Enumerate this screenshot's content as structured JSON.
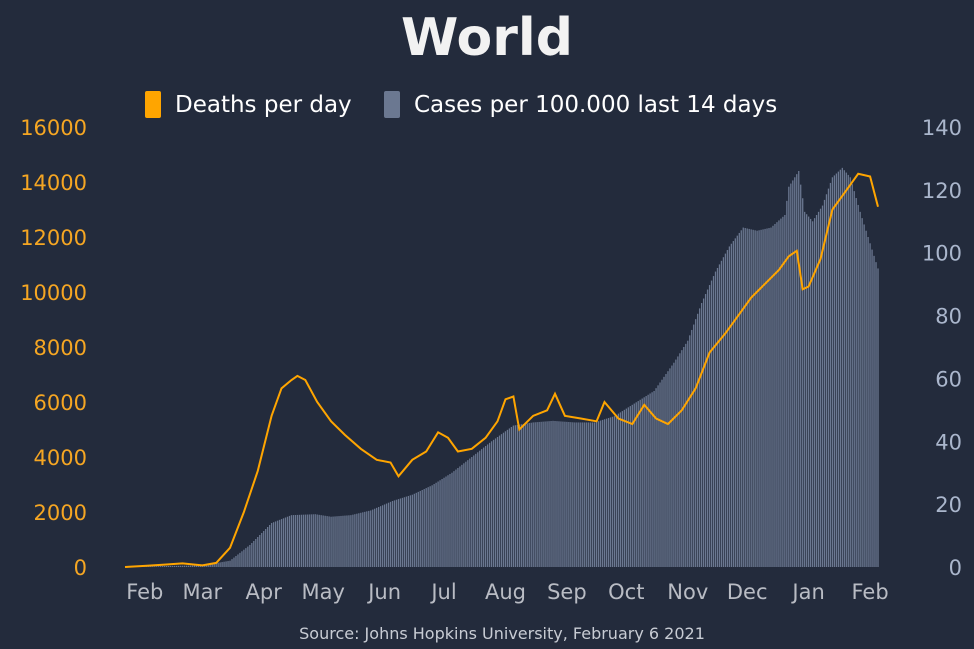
{
  "colors": {
    "background": "#232b3c",
    "deaths": "#ffa500",
    "cases": "#6b7891",
    "left_axis": "#f5a623",
    "right_axis": "#aab6cc",
    "x_axis": "#b9bcc4"
  },
  "chart_data": {
    "type": "bar",
    "title": "World",
    "source": "Source: Johns Hopkins University, February 6 2021",
    "legend": {
      "placement": "top-center",
      "deaths_label": "Deaths per day",
      "cases_label": "Cases per 100.000 last 14 days"
    },
    "x_ticks": [
      "Feb",
      "Mar",
      "Apr",
      "May",
      "Jun",
      "Jul",
      "Aug",
      "Sep",
      "Oct",
      "Nov",
      "Dec",
      "Jan",
      "Feb"
    ],
    "x_tick_dates": [
      "2020-02-01",
      "2020-03-01",
      "2020-04-01",
      "2020-05-01",
      "2020-06-01",
      "2020-07-01",
      "2020-08-01",
      "2020-09-01",
      "2020-10-01",
      "2020-11-01",
      "2020-12-01",
      "2021-01-01",
      "2021-02-01"
    ],
    "x_range": [
      "2020-01-22",
      "2021-02-05"
    ],
    "y_left": {
      "label": "",
      "range": [
        0,
        16000
      ],
      "ticks": [
        0,
        2000,
        4000,
        6000,
        8000,
        10000,
        12000,
        14000,
        16000
      ]
    },
    "y_right": {
      "label": "",
      "range": [
        0,
        140
      ],
      "ticks": [
        0,
        20,
        40,
        60,
        80,
        100,
        120,
        140
      ]
    },
    "grid": false,
    "series": [
      {
        "name": "Deaths per day",
        "kind": "line",
        "axis": "left",
        "points": [
          [
            "2020-01-22",
            0
          ],
          [
            "2020-02-01",
            40
          ],
          [
            "2020-02-10",
            80
          ],
          [
            "2020-02-20",
            130
          ],
          [
            "2020-03-01",
            60
          ],
          [
            "2020-03-08",
            150
          ],
          [
            "2020-03-15",
            700
          ],
          [
            "2020-03-22",
            2000
          ],
          [
            "2020-03-29",
            3500
          ],
          [
            "2020-04-05",
            5500
          ],
          [
            "2020-04-10",
            6500
          ],
          [
            "2020-04-15",
            6800
          ],
          [
            "2020-04-18",
            6950
          ],
          [
            "2020-04-22",
            6800
          ],
          [
            "2020-04-28",
            6000
          ],
          [
            "2020-05-05",
            5300
          ],
          [
            "2020-05-12",
            4800
          ],
          [
            "2020-05-20",
            4300
          ],
          [
            "2020-05-28",
            3900
          ],
          [
            "2020-06-04",
            3800
          ],
          [
            "2020-06-08",
            3300
          ],
          [
            "2020-06-15",
            3900
          ],
          [
            "2020-06-22",
            4200
          ],
          [
            "2020-06-28",
            4900
          ],
          [
            "2020-07-03",
            4700
          ],
          [
            "2020-07-08",
            4200
          ],
          [
            "2020-07-15",
            4300
          ],
          [
            "2020-07-22",
            4700
          ],
          [
            "2020-07-28",
            5300
          ],
          [
            "2020-08-01",
            6100
          ],
          [
            "2020-08-05",
            6200
          ],
          [
            "2020-08-08",
            5000
          ],
          [
            "2020-08-15",
            5500
          ],
          [
            "2020-08-22",
            5700
          ],
          [
            "2020-08-26",
            6300
          ],
          [
            "2020-08-31",
            5500
          ],
          [
            "2020-09-08",
            5400
          ],
          [
            "2020-09-16",
            5300
          ],
          [
            "2020-09-20",
            6000
          ],
          [
            "2020-09-27",
            5400
          ],
          [
            "2020-10-04",
            5200
          ],
          [
            "2020-10-10",
            5900
          ],
          [
            "2020-10-16",
            5400
          ],
          [
            "2020-10-22",
            5200
          ],
          [
            "2020-10-29",
            5700
          ],
          [
            "2020-11-05",
            6500
          ],
          [
            "2020-11-12",
            7800
          ],
          [
            "2020-11-20",
            8500
          ],
          [
            "2020-11-28",
            9300
          ],
          [
            "2020-12-03",
            9800
          ],
          [
            "2020-12-10",
            10300
          ],
          [
            "2020-12-17",
            10800
          ],
          [
            "2020-12-22",
            11300
          ],
          [
            "2020-12-26",
            11500
          ],
          [
            "2020-12-29",
            10100
          ],
          [
            "2021-01-01",
            10200
          ],
          [
            "2021-01-07",
            11200
          ],
          [
            "2021-01-13",
            13000
          ],
          [
            "2021-01-20",
            13700
          ],
          [
            "2021-01-26",
            14300
          ],
          [
            "2021-02-01",
            14200
          ],
          [
            "2021-02-05",
            13100
          ]
        ]
      },
      {
        "name": "Cases per 100.000 last 14 days",
        "kind": "bar",
        "axis": "right",
        "points": [
          [
            "2020-01-22",
            0
          ],
          [
            "2020-02-10",
            0.3
          ],
          [
            "2020-03-01",
            0.5
          ],
          [
            "2020-03-15",
            2
          ],
          [
            "2020-03-25",
            7
          ],
          [
            "2020-04-05",
            14
          ],
          [
            "2020-04-15",
            16.5
          ],
          [
            "2020-04-27",
            16.8
          ],
          [
            "2020-05-05",
            16
          ],
          [
            "2020-05-15",
            16.5
          ],
          [
            "2020-05-25",
            18
          ],
          [
            "2020-06-05",
            21
          ],
          [
            "2020-06-15",
            23
          ],
          [
            "2020-06-25",
            26
          ],
          [
            "2020-07-05",
            30
          ],
          [
            "2020-07-15",
            35
          ],
          [
            "2020-07-25",
            40
          ],
          [
            "2020-08-05",
            45
          ],
          [
            "2020-08-15",
            46
          ],
          [
            "2020-08-25",
            46.5
          ],
          [
            "2020-09-05",
            46
          ],
          [
            "2020-09-15",
            46
          ],
          [
            "2020-09-25",
            48
          ],
          [
            "2020-10-05",
            52
          ],
          [
            "2020-10-15",
            56
          ],
          [
            "2020-10-25",
            65
          ],
          [
            "2020-11-01",
            72
          ],
          [
            "2020-11-08",
            84
          ],
          [
            "2020-11-15",
            94
          ],
          [
            "2020-11-22",
            102
          ],
          [
            "2020-11-29",
            108
          ],
          [
            "2020-12-06",
            107
          ],
          [
            "2020-12-13",
            108
          ],
          [
            "2020-12-20",
            112
          ],
          [
            "2020-12-22",
            121
          ],
          [
            "2020-12-27",
            126
          ],
          [
            "2020-12-30",
            113
          ],
          [
            "2021-01-03",
            110
          ],
          [
            "2021-01-08",
            115
          ],
          [
            "2021-01-13",
            124
          ],
          [
            "2021-01-18",
            127
          ],
          [
            "2021-01-22",
            124
          ],
          [
            "2021-01-27",
            113
          ],
          [
            "2021-02-01",
            103
          ],
          [
            "2021-02-05",
            95
          ]
        ]
      }
    ]
  }
}
